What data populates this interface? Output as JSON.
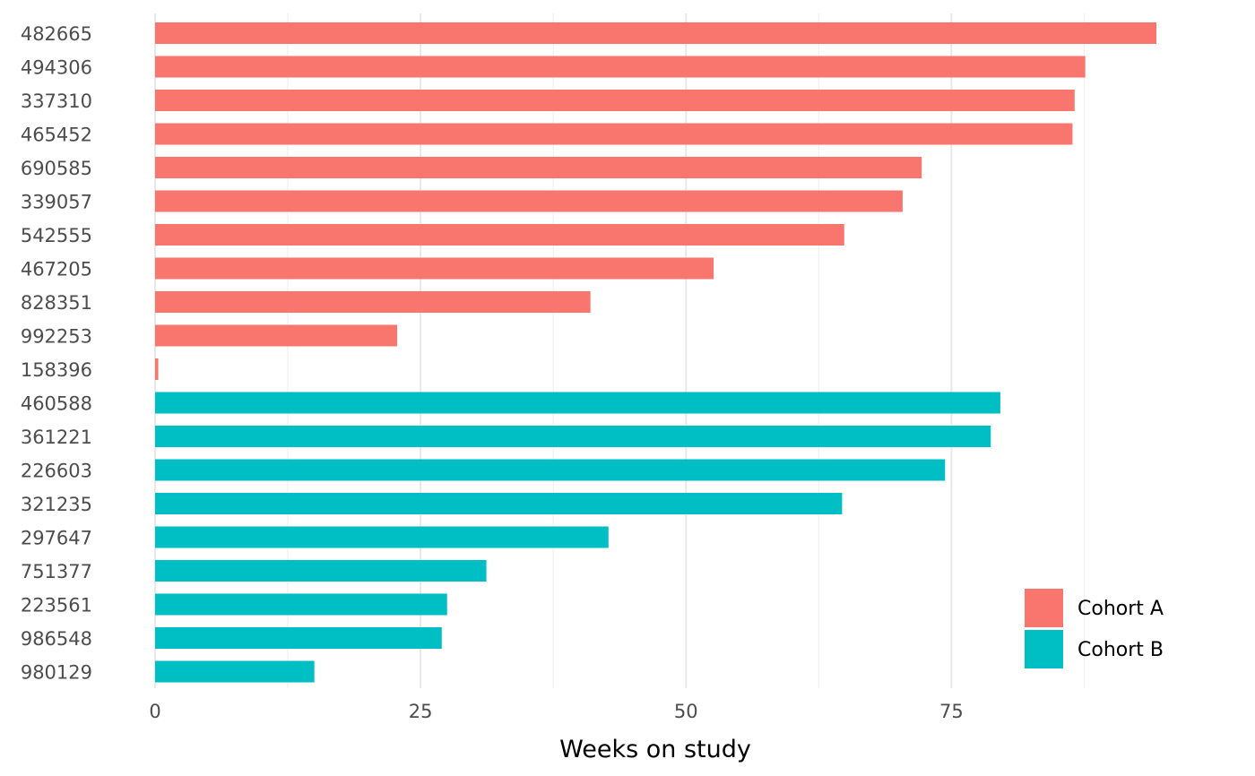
{
  "chart_data": {
    "type": "bar",
    "orientation": "horizontal",
    "title": "",
    "xlabel": "Weeks on study",
    "ylabel": "",
    "xlim": [
      0,
      94.3
    ],
    "x_ticks": [
      0,
      25,
      50,
      75
    ],
    "grid": true,
    "legend_position": "bottom-right",
    "categories": [
      "482665",
      "494306",
      "337310",
      "465452",
      "690585",
      "339057",
      "542555",
      "467205",
      "828351",
      "992253",
      "158396",
      "460588",
      "361221",
      "226603",
      "321235",
      "297647",
      "751377",
      "223561",
      "986548",
      "980129"
    ],
    "values": [
      94.3,
      87.6,
      86.6,
      86.4,
      72.2,
      70.4,
      64.9,
      52.6,
      41.0,
      22.8,
      0.3,
      79.6,
      78.7,
      74.4,
      64.7,
      42.7,
      31.2,
      27.5,
      27.0,
      15.0
    ],
    "groups": [
      "Cohort A",
      "Cohort A",
      "Cohort A",
      "Cohort A",
      "Cohort A",
      "Cohort A",
      "Cohort A",
      "Cohort A",
      "Cohort A",
      "Cohort A",
      "Cohort A",
      "Cohort B",
      "Cohort B",
      "Cohort B",
      "Cohort B",
      "Cohort B",
      "Cohort B",
      "Cohort B",
      "Cohort B",
      "Cohort B"
    ],
    "legend": [
      {
        "name": "Cohort A",
        "color": "#F8766D"
      },
      {
        "name": "Cohort B",
        "color": "#00BFC4"
      }
    ]
  }
}
